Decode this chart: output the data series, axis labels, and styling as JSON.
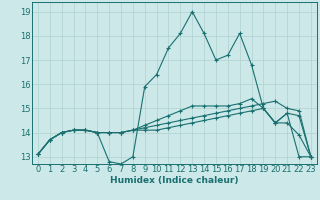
{
  "xlabel": "Humidex (Indice chaleur)",
  "xlim": [
    -0.5,
    23.5
  ],
  "ylim": [
    12.7,
    19.4
  ],
  "yticks": [
    13,
    14,
    15,
    16,
    17,
    18,
    19
  ],
  "xticks": [
    0,
    1,
    2,
    3,
    4,
    5,
    6,
    7,
    8,
    9,
    10,
    11,
    12,
    13,
    14,
    15,
    16,
    17,
    18,
    19,
    20,
    21,
    22,
    23
  ],
  "bg_color": "#cce8e8",
  "grid_color": "#b0d0d0",
  "line_color": "#1a7070",
  "series": [
    [
      13.1,
      13.7,
      14.0,
      14.1,
      14.1,
      14.0,
      12.8,
      12.7,
      13.0,
      15.9,
      16.4,
      17.5,
      18.1,
      19.0,
      18.1,
      17.0,
      17.2,
      18.1,
      16.8,
      15.0,
      14.4,
      14.8,
      13.0,
      13.0
    ],
    [
      13.1,
      13.7,
      14.0,
      14.1,
      14.1,
      14.0,
      14.0,
      14.0,
      14.1,
      14.2,
      14.3,
      14.4,
      14.5,
      14.6,
      14.7,
      14.8,
      14.9,
      15.0,
      15.1,
      15.2,
      15.3,
      15.0,
      14.9,
      13.0
    ],
    [
      13.1,
      13.7,
      14.0,
      14.1,
      14.1,
      14.0,
      14.0,
      14.0,
      14.1,
      14.3,
      14.5,
      14.7,
      14.9,
      15.1,
      15.1,
      15.1,
      15.1,
      15.2,
      15.4,
      15.0,
      14.4,
      14.8,
      14.7,
      13.0
    ],
    [
      13.1,
      13.7,
      14.0,
      14.1,
      14.1,
      14.0,
      14.0,
      14.0,
      14.1,
      14.1,
      14.1,
      14.2,
      14.3,
      14.4,
      14.5,
      14.6,
      14.7,
      14.8,
      14.9,
      15.0,
      14.4,
      14.4,
      13.9,
      13.0
    ]
  ],
  "marker": "+",
  "markersize": 3,
  "linewidth": 0.8
}
